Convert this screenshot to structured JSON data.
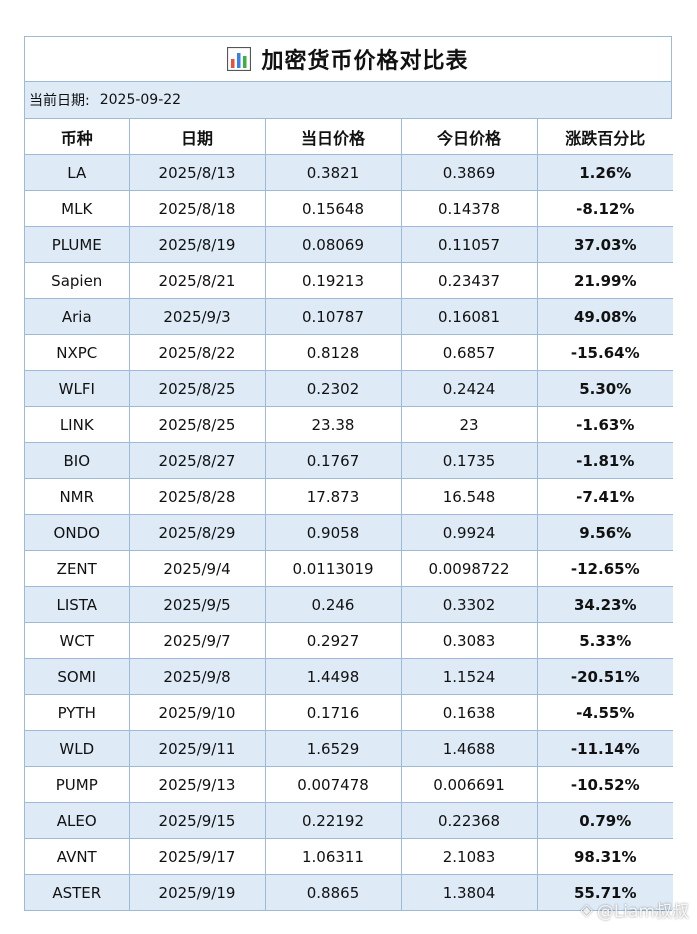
{
  "title": "加密货币价格对比表",
  "title_icon": "bar-chart-icon",
  "date_label": "当前日期:",
  "date_value": "2025-09-22",
  "columns": [
    "币种",
    "日期",
    "当日价格",
    "今日价格",
    "涨跌百分比"
  ],
  "rows": [
    [
      "LA",
      "2025/8/13",
      "0.3821",
      "0.3869",
      "1.26%"
    ],
    [
      "MLK",
      "2025/8/18",
      "0.15648",
      "0.14378",
      "-8.12%"
    ],
    [
      "PLUME",
      "2025/8/19",
      "0.08069",
      "0.11057",
      "37.03%"
    ],
    [
      "Sapien",
      "2025/8/21",
      "0.19213",
      "0.23437",
      "21.99%"
    ],
    [
      "Aria",
      "2025/9/3",
      "0.10787",
      "0.16081",
      "49.08%"
    ],
    [
      "NXPC",
      "2025/8/22",
      "0.8128",
      "0.6857",
      "-15.64%"
    ],
    [
      "WLFI",
      "2025/8/25",
      "0.2302",
      "0.2424",
      "5.30%"
    ],
    [
      "LINK",
      "2025/8/25",
      "23.38",
      "23",
      "-1.63%"
    ],
    [
      "BIO",
      "2025/8/27",
      "0.1767",
      "0.1735",
      "-1.81%"
    ],
    [
      "NMR",
      "2025/8/28",
      "17.873",
      "16.548",
      "-7.41%"
    ],
    [
      "ONDO",
      "2025/8/29",
      "0.9058",
      "0.9924",
      "9.56%"
    ],
    [
      "ZENT",
      "2025/9/4",
      "0.0113019",
      "0.0098722",
      "-12.65%"
    ],
    [
      "LISTA",
      "2025/9/5",
      "0.246",
      "0.3302",
      "34.23%"
    ],
    [
      "WCT",
      "2025/9/7",
      "0.2927",
      "0.3083",
      "5.33%"
    ],
    [
      "SOMI",
      "2025/9/8",
      "1.4498",
      "1.1524",
      "-20.51%"
    ],
    [
      "PYTH",
      "2025/9/10",
      "0.1716",
      "0.1638",
      "-4.55%"
    ],
    [
      "WLD",
      "2025/9/11",
      "1.6529",
      "1.4688",
      "-11.14%"
    ],
    [
      "PUMP",
      "2025/9/13",
      "0.007478",
      "0.006691",
      "-10.52%"
    ],
    [
      "ALEO",
      "2025/9/15",
      "0.22192",
      "0.22368",
      "0.79%"
    ],
    [
      "AVNT",
      "2025/9/17",
      "1.06311",
      "2.1083",
      "98.31%"
    ],
    [
      "ASTER",
      "2025/9/19",
      "0.8865",
      "1.3804",
      "55.71%"
    ]
  ],
  "watermark": "@Liam叔叔",
  "colors": {
    "border": "#9dbbd9",
    "stripe": "#deeaf6"
  }
}
